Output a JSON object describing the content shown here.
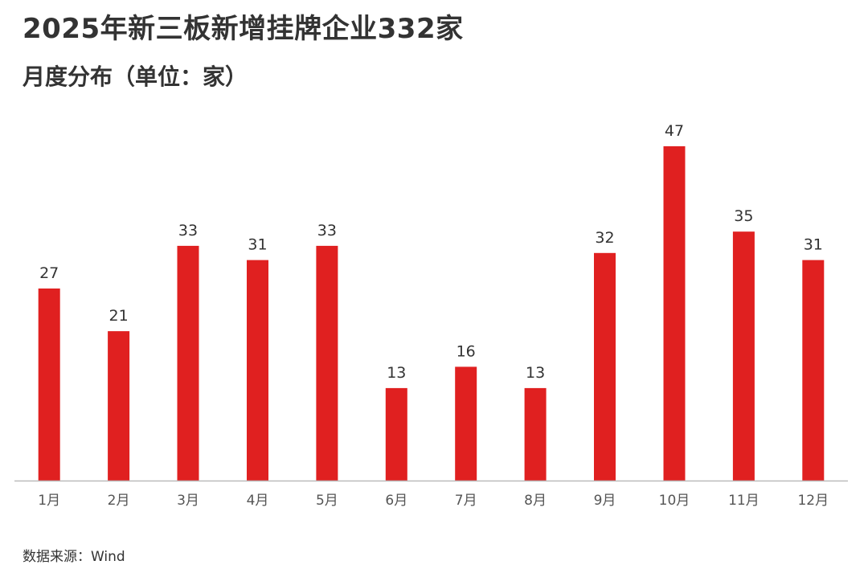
{
  "title": "2025年新三板新增挂牌企业332家",
  "subtitle": "月度分布（单位：家）",
  "source": "数据来源：Wind",
  "colors": {
    "bar": "#e02020",
    "axis": "#bbbbbb",
    "text": "#333333"
  },
  "chart_data": {
    "type": "bar",
    "categories": [
      "1月",
      "2月",
      "3月",
      "4月",
      "5月",
      "6月",
      "7月",
      "8月",
      "9月",
      "10月",
      "11月",
      "12月"
    ],
    "values": [
      27,
      21,
      33,
      31,
      33,
      13,
      16,
      13,
      32,
      47,
      35,
      31
    ],
    "ylim": [
      0,
      47
    ],
    "grid": false,
    "data_labels": true
  }
}
